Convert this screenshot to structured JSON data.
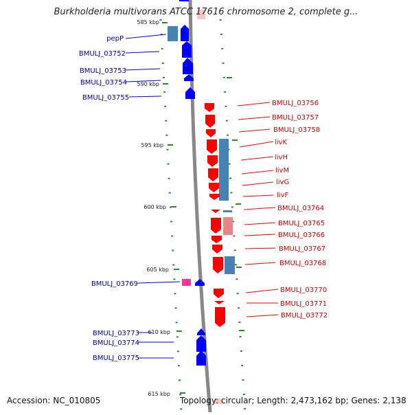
{
  "title": "Burkholderia multivorans ATCC 17616 chromosome 2, complete g...",
  "footer": {
    "accession": "Accession: NC_010805",
    "topology": "Topology: circular; Length: 2,473,162 bp; Genes: 2,138"
  },
  "colors": {
    "forward_gene": "#0000ff",
    "reverse_gene": "#ff0000",
    "forward_label": "#00008b",
    "reverse_label": "#cc0000",
    "blue_feature": "#4682b4",
    "pink_feature": "#e8848c",
    "magenta_feature": "#ff3399",
    "backbone": "#888888",
    "tick": "#1a8a1a"
  },
  "ticks": [
    "585 kbp",
    "590 kbp",
    "595 kbp",
    "600 kbp",
    "605 kbp",
    "610 kbp",
    "615 kbp"
  ],
  "forward_labels": [
    "pepP",
    "BMULJ_03752",
    "BMULJ_03753",
    "BMULJ_03754",
    "BMULJ_03755",
    "BMULJ_03769",
    "BMULJ_03773",
    "BMULJ_03774",
    "BMULJ_03775"
  ],
  "reverse_labels": [
    "BMULJ_03756",
    "BMULJ_03757",
    "BMULJ_03758",
    "livK",
    "livH",
    "livM",
    "livG",
    "livF",
    "BMULJ_03764",
    "BMULJ_03765",
    "BMULJ_03766",
    "BMULJ_03767",
    "BMULJ_03768",
    "BMULJ_03770",
    "BMULJ_03771",
    "BMULJ_03772"
  ]
}
